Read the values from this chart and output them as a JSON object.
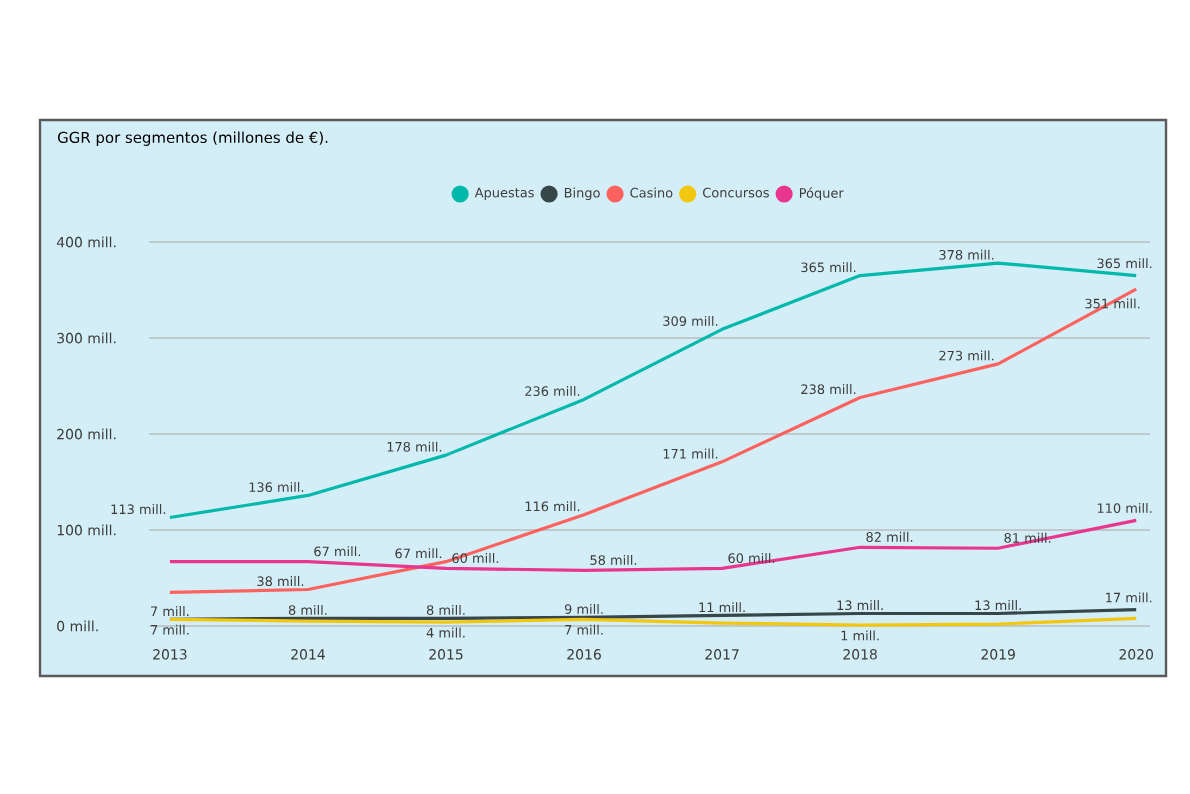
{
  "chart_data": {
    "type": "line",
    "title": "GGR por segmentos (millones de €).",
    "x": [
      2013,
      2014,
      2015,
      2016,
      2017,
      2018,
      2019,
      2020
    ],
    "xlim": [
      2012.85,
      2020.1
    ],
    "xticks": [
      2013,
      2014,
      2015,
      2016,
      2017,
      2018,
      2019,
      2020
    ],
    "ylim": [
      0,
      400
    ],
    "yticks": [
      {
        "value": 0,
        "label": "0 mill."
      },
      {
        "value": 100,
        "label": "100 mill."
      },
      {
        "value": 200,
        "label": "200 mill."
      },
      {
        "value": 300,
        "label": "300 mill."
      },
      {
        "value": 400,
        "label": "400 mill."
      }
    ],
    "grid": "y",
    "legend": "top",
    "marker": "none",
    "line_style": "solid",
    "series": [
      {
        "name": "Apuestas",
        "color": "#01b8aa",
        "values": [
          113,
          136,
          178,
          236,
          309,
          365,
          378,
          365
        ],
        "value_labels": [
          "113 mill.",
          "136 mill.",
          "178 mill.",
          "236 mill.",
          "309 mill.",
          "365 mill.",
          "378 mill.",
          "365 mill."
        ]
      },
      {
        "name": "Bingo",
        "color": "#374649",
        "values": [
          7,
          8,
          8,
          9,
          11,
          13,
          13,
          17
        ],
        "value_labels": [
          "7 mill.",
          "8 mill.",
          "8 mill.",
          "9 mill.",
          "11 mill.",
          "13 mill.",
          "13 mill.",
          "17 mill."
        ]
      },
      {
        "name": "Casino",
        "color": "#fd625e",
        "values": [
          35,
          38,
          67,
          116,
          171,
          238,
          273,
          351
        ],
        "value_labels": [
          null,
          "38 mill.",
          "67 mill.",
          "116 mill.",
          "171 mill.",
          "238 mill.",
          "273 mill.",
          "351 mill."
        ]
      },
      {
        "name": "Concursos",
        "color": "#f2c80f",
        "values": [
          7,
          5,
          4,
          7,
          3,
          1,
          2,
          8
        ],
        "value_labels": [
          "7 mill.",
          null,
          "4 mill.",
          "7 mill.",
          null,
          "1 mill.",
          null,
          null
        ]
      },
      {
        "name": "Póquer",
        "color": "#e8368f",
        "values": [
          67,
          67,
          60,
          58,
          60,
          82,
          81,
          110
        ],
        "value_labels": [
          null,
          "67 mill.",
          "60 mill.",
          "58 mill.",
          "60 mill.",
          "82 mill.",
          "81 mill.",
          "110 mill."
        ]
      }
    ]
  }
}
